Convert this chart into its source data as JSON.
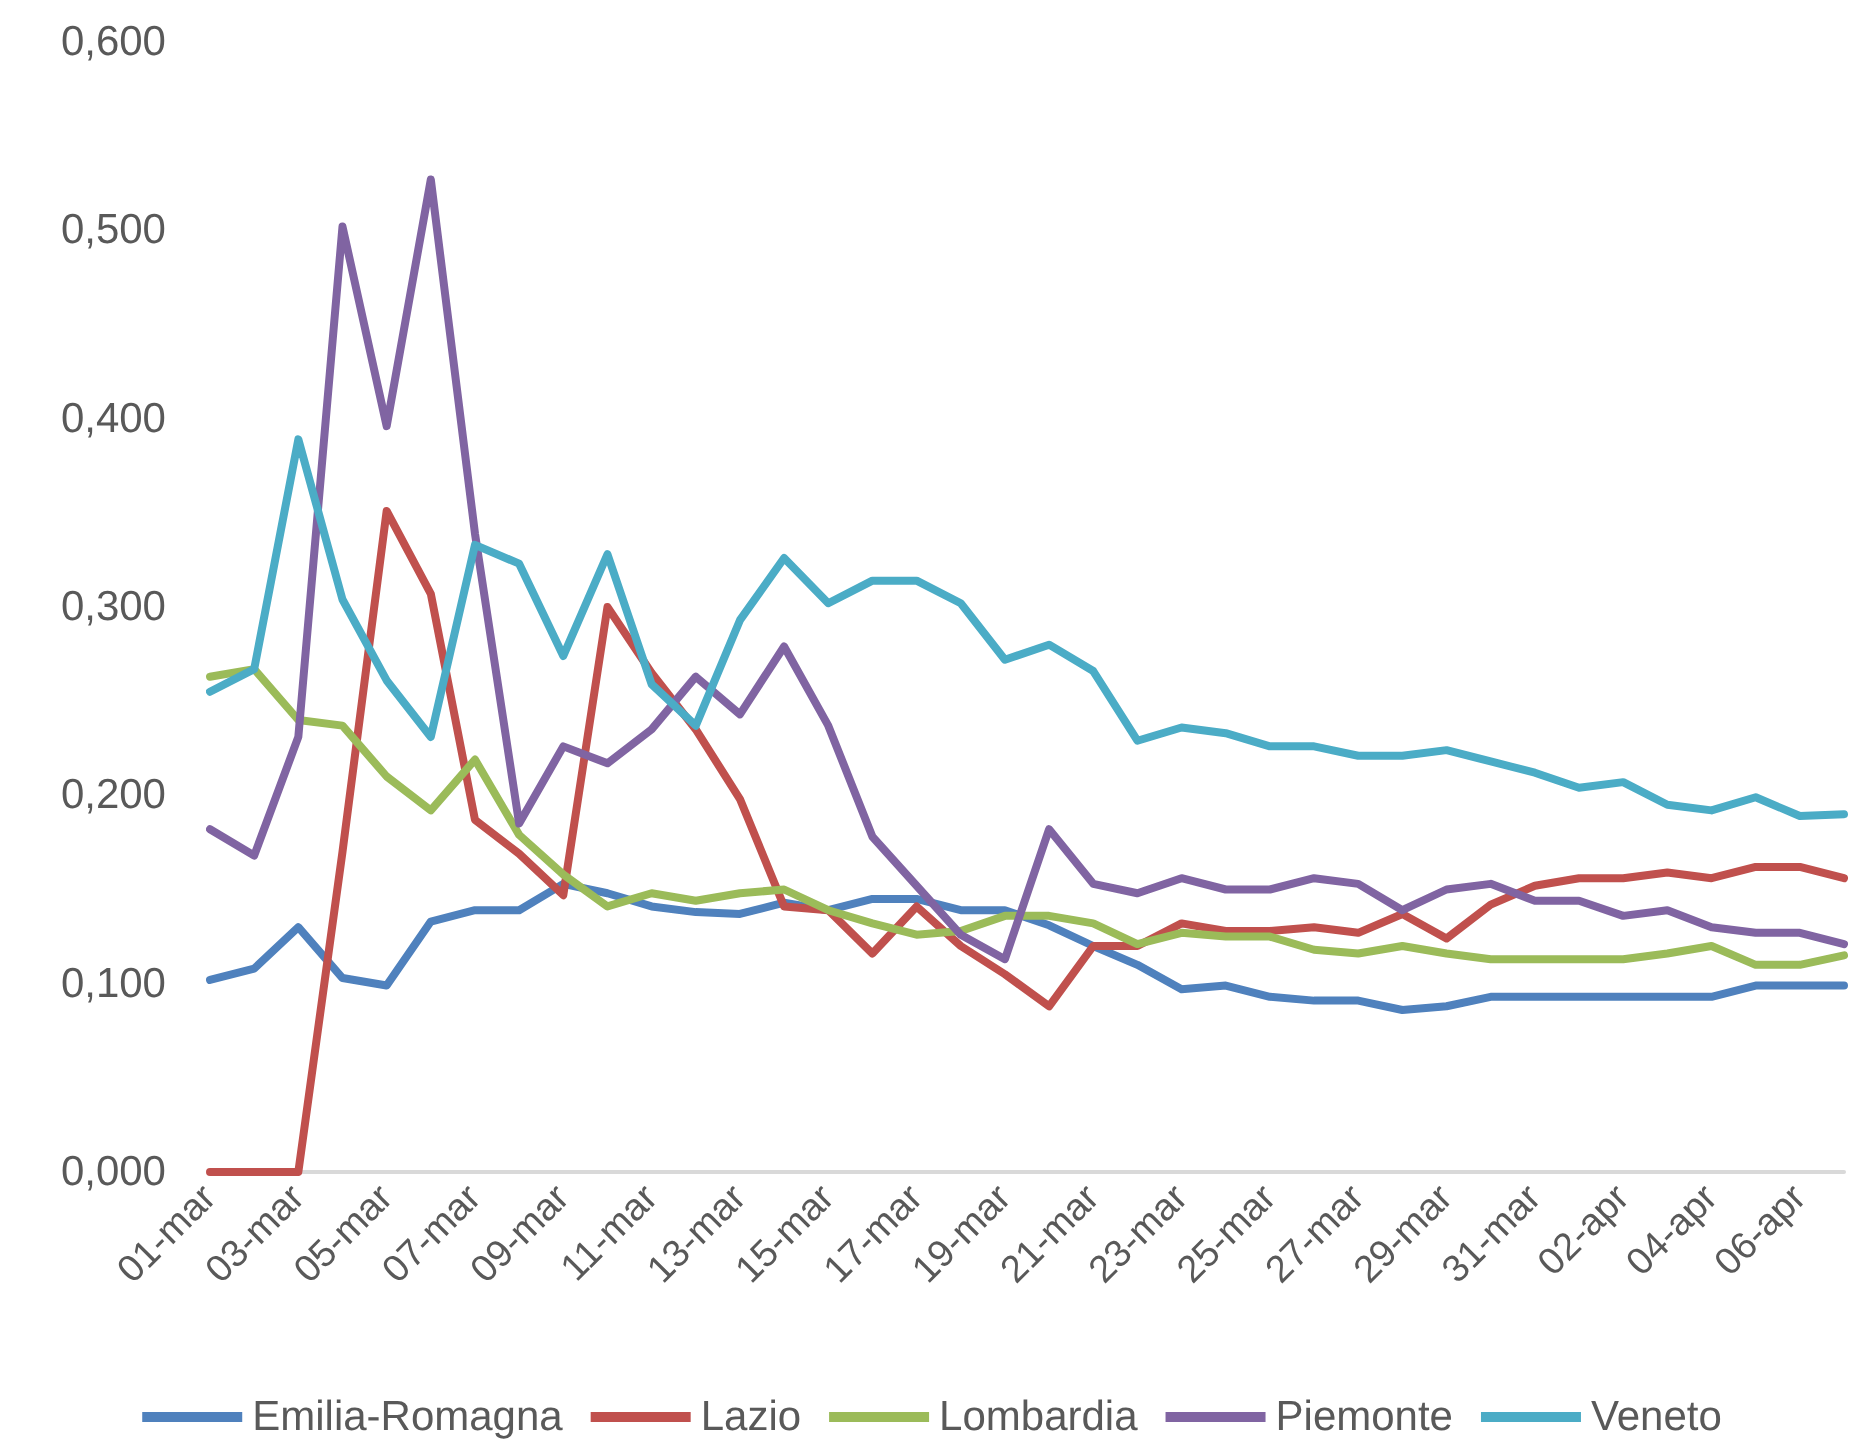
{
  "chart_data": {
    "type": "line",
    "categories": [
      "01-mar",
      null,
      "03-mar",
      null,
      "05-mar",
      null,
      "07-mar",
      null,
      "09-mar",
      null,
      "11-mar",
      null,
      "13-mar",
      null,
      "15-mar",
      null,
      "17-mar",
      null,
      "19-mar",
      null,
      "21-mar",
      null,
      "23-mar",
      null,
      "25-mar",
      null,
      "27-mar",
      null,
      "29-mar",
      null,
      "31-mar",
      null,
      "02-apr",
      null,
      "04-apr",
      null,
      "06-apr",
      null
    ],
    "series": [
      {
        "name": "Emilia-Romagna",
        "color": "#4f81bd",
        "values": [
          0.102,
          0.108,
          0.13,
          0.103,
          0.099,
          0.133,
          0.139,
          0.139,
          0.153,
          0.148,
          0.141,
          0.138,
          0.137,
          0.143,
          0.139,
          0.145,
          0.145,
          0.139,
          0.139,
          0.131,
          0.12,
          0.11,
          0.097,
          0.099,
          0.093,
          0.091,
          0.091,
          0.086,
          0.088,
          0.093,
          0.093,
          0.093,
          0.093,
          0.093,
          0.093,
          0.099,
          0.099,
          0.099
        ]
      },
      {
        "name": "Lazio",
        "color": "#c0504d",
        "values": [
          0,
          0,
          0,
          0.17,
          0.351,
          0.307,
          0.187,
          0.169,
          0.147,
          0.3,
          0.265,
          0.235,
          0.198,
          0.141,
          0.139,
          0.116,
          0.141,
          0.12,
          0.105,
          0.088,
          0.12,
          0.12,
          0.132,
          0.128,
          0.128,
          0.13,
          0.127,
          0.137,
          0.124,
          0.142,
          0.152,
          0.156,
          0.156,
          0.159,
          0.156,
          0.162,
          0.162,
          0.156
        ]
      },
      {
        "name": "Lombardia",
        "color": "#9bbb59",
        "values": [
          0.263,
          0.267,
          0.24,
          0.237,
          0.21,
          0.192,
          0.219,
          0.179,
          0.158,
          0.141,
          0.148,
          0.144,
          0.148,
          0.15,
          0.139,
          0.132,
          0.126,
          0.128,
          0.136,
          0.136,
          0.132,
          0.121,
          0.127,
          0.125,
          0.125,
          0.118,
          0.116,
          0.12,
          0.116,
          0.113,
          0.113,
          0.113,
          0.113,
          0.116,
          0.12,
          0.11,
          0.11,
          0.115
        ]
      },
      {
        "name": "Piemonte",
        "color": "#8064a2",
        "values": [
          0.182,
          0.168,
          0.231,
          0.502,
          0.396,
          0.527,
          0.339,
          0.185,
          0.226,
          0.217,
          0.235,
          0.263,
          0.243,
          0.279,
          0.237,
          0.178,
          0.152,
          0.126,
          0.113,
          0.182,
          0.153,
          0.148,
          0.156,
          0.15,
          0.15,
          0.156,
          0.153,
          0.139,
          0.15,
          0.153,
          0.144,
          0.144,
          0.136,
          0.139,
          0.13,
          0.127,
          0.127,
          0.121
        ]
      },
      {
        "name": "Veneto",
        "color": "#4bacc6",
        "values": [
          0.255,
          0.267,
          0.389,
          0.304,
          0.261,
          0.231,
          0.333,
          0.323,
          0.274,
          0.328,
          0.259,
          0.237,
          0.293,
          0.326,
          0.302,
          0.314,
          0.314,
          0.302,
          0.272,
          0.28,
          0.266,
          0.229,
          0.236,
          0.233,
          0.226,
          0.226,
          0.221,
          0.221,
          0.224,
          0.218,
          0.212,
          0.204,
          0.207,
          0.195,
          0.192,
          0.199,
          0.189,
          0.19
        ]
      }
    ],
    "ylim": [
      0,
      0.6
    ],
    "yticks": [
      {
        "value": 0,
        "label": "0,000"
      },
      {
        "value": 0.1,
        "label": "0,100"
      },
      {
        "value": 0.2,
        "label": "0,200"
      },
      {
        "value": 0.3,
        "label": "0,300"
      },
      {
        "value": 0.4,
        "label": "0,400"
      },
      {
        "value": 0.5,
        "label": "0,500"
      },
      {
        "value": 0.6,
        "label": "0,600"
      }
    ],
    "grid": false,
    "legend": "bottom",
    "marker": "none",
    "line_style": "solid"
  }
}
